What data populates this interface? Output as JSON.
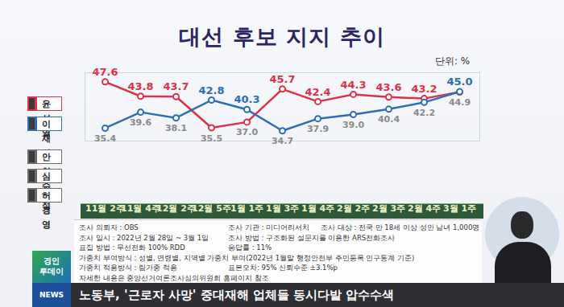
{
  "chart_data": {
    "type": "line",
    "title": "대선 후보 지지 추이",
    "subtitle": "단위: %",
    "categories": [
      "11월 2주",
      "11월 4주",
      "12월 2주",
      "12월 5주",
      "1월 1주",
      "1월 3주",
      "1월 4주",
      "2월 2주",
      "2월 3주",
      "2월 4주",
      "3월 1주"
    ],
    "series": [
      {
        "name": "윤석열",
        "color": "#d9344a",
        "values": [
          47.6,
          43.8,
          43.7,
          35.5,
          37.0,
          45.7,
          42.4,
          44.3,
          43.6,
          43.2,
          44.9
        ],
        "value_labels": [
          "47.6",
          "43.8",
          "43.7",
          "35.5",
          "37.0",
          "45.7",
          "42.4",
          "44.3",
          "43.6",
          "43.2",
          "44.9"
        ]
      },
      {
        "name": "이재명",
        "color": "#2f6db5",
        "values": [
          35.4,
          39.6,
          38.1,
          42.8,
          40.3,
          34.7,
          37.9,
          39.0,
          40.4,
          42.2,
          45.0
        ],
        "value_labels": [
          "35.4",
          "39.6",
          "38.1",
          "42.8",
          "40.3",
          "34.7",
          "37.9",
          "39.0",
          "40.4",
          "42.2",
          "45.0"
        ]
      },
      {
        "name": "안철수",
        "color": "#6b6b6b",
        "values": [
          null,
          null,
          null,
          null,
          null,
          null,
          null,
          null,
          null,
          null,
          null
        ]
      },
      {
        "name": "심상정",
        "color": "#6b6b6b",
        "values": [
          null,
          null,
          null,
          null,
          null,
          null,
          null,
          null,
          null,
          null,
          null
        ]
      },
      {
        "name": "허경영",
        "color": "#6b6b6b",
        "values": [
          null,
          null,
          null,
          null,
          null,
          null,
          null,
          null,
          null,
          null,
          null
        ]
      }
    ],
    "ylim": [
      32,
      50
    ],
    "yticks": [],
    "grid": false,
    "data_labels": true,
    "tick_labels": "x",
    "marker": "circle"
  },
  "survey_info": [
    [
      "조사 의뢰자 : OBS",
      "조사 기관 : 미디어리서치",
      "조사 대상 : 전국 만 18세 이상 성인 남녀 1,000명"
    ],
    [
      "조사 일시 : 2022년 2월 28일 ~ 3월 1일",
      "조사 방법 : 구조화된 설문지를 이용한 ARS전화조사"
    ],
    [
      "표집 방법 : 무선전화 100% RDD",
      "응답률 : 11%"
    ],
    [
      "가중치 부여방식 : 성별, 연령별, 지역별 가중치 부여(2022년 1월말 행정안전부 주민등록 인구통계 기준)"
    ],
    [
      "가중치 적용방식 : 림가중 적용",
      "표본오차: 95% 신뢰수준 ±3.1%p"
    ],
    [
      "자세한 내용은 중앙선거여론조사심의위원회 홈페이지 참조"
    ]
  ],
  "broadcast": {
    "logo": [
      "경인",
      "투데이",
      "NEWS"
    ],
    "ticker": "노동부, '근로자 사망' 중대재해 업체들 동시다발 압수수색"
  }
}
